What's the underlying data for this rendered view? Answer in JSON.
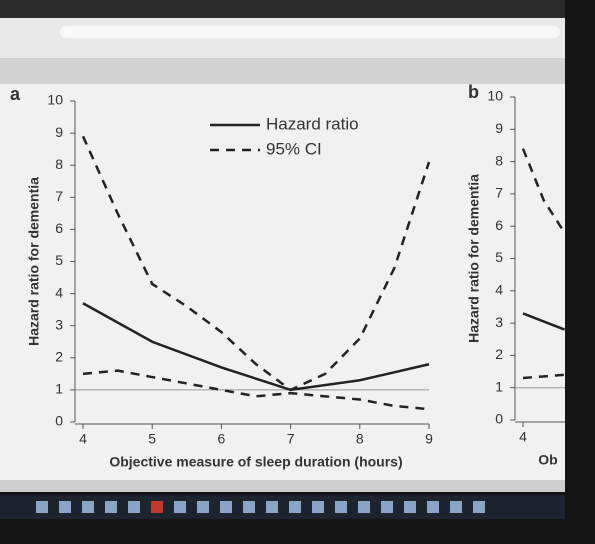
{
  "chart_data": [
    {
      "type": "line",
      "panel_label": "a",
      "x_label": "Objective measure of sleep duration (hours)",
      "y_label": "Hazard ratio for dementia",
      "xlim": [
        4,
        9
      ],
      "xticks": [
        4,
        5,
        6,
        7,
        8,
        9
      ],
      "ylim": [
        0,
        10
      ],
      "yticks": [
        0,
        1,
        2,
        3,
        4,
        5,
        6,
        7,
        8,
        9,
        10
      ],
      "reference_line": 1,
      "legend": [
        {
          "label": "Hazard ratio",
          "style": "solid"
        },
        {
          "label": "95% CI",
          "style": "dashed"
        }
      ],
      "series": [
        {
          "style": "solid",
          "color": "#222222",
          "x": [
            4,
            5,
            6,
            7,
            8,
            9
          ],
          "values": [
            3.7,
            2.5,
            1.7,
            1.0,
            1.3,
            1.8
          ]
        },
        {
          "style": "dashed",
          "color": "#222222",
          "x": [
            4,
            4.5,
            5,
            5.5,
            6,
            6.5,
            7,
            7.5,
            8,
            8.5,
            9
          ],
          "values": [
            8.9,
            6.5,
            4.3,
            3.6,
            2.8,
            1.8,
            1.0,
            1.5,
            2.6,
            4.8,
            8.1
          ]
        },
        {
          "style": "dashed",
          "color": "#222222",
          "x": [
            4,
            4.5,
            5,
            5.5,
            6,
            6.5,
            7,
            7.5,
            8,
            8.5,
            9
          ],
          "values": [
            1.5,
            1.6,
            1.4,
            1.2,
            1.0,
            0.8,
            0.9,
            0.8,
            0.7,
            0.5,
            0.4
          ]
        }
      ]
    },
    {
      "type": "line",
      "panel_label": "b",
      "x_label": "Ob",
      "y_label": "Hazard ratio for dementia",
      "xlim": [
        4,
        9
      ],
      "xticks": [
        4
      ],
      "ylim": [
        0,
        10
      ],
      "yticks": [
        0,
        1,
        2,
        3,
        4,
        5,
        6,
        7,
        8,
        9,
        10
      ],
      "reference_line": 1,
      "series": [
        {
          "style": "solid",
          "color": "#222222",
          "x": [
            4,
            4.6
          ],
          "values": [
            3.3,
            2.8
          ]
        },
        {
          "style": "dashed",
          "color": "#222222",
          "x": [
            4,
            4.3,
            4.6
          ],
          "values": [
            8.4,
            6.8,
            5.8
          ]
        },
        {
          "style": "dashed",
          "color": "#222222",
          "x": [
            4,
            4.6
          ],
          "values": [
            1.3,
            1.4
          ]
        }
      ]
    }
  ]
}
